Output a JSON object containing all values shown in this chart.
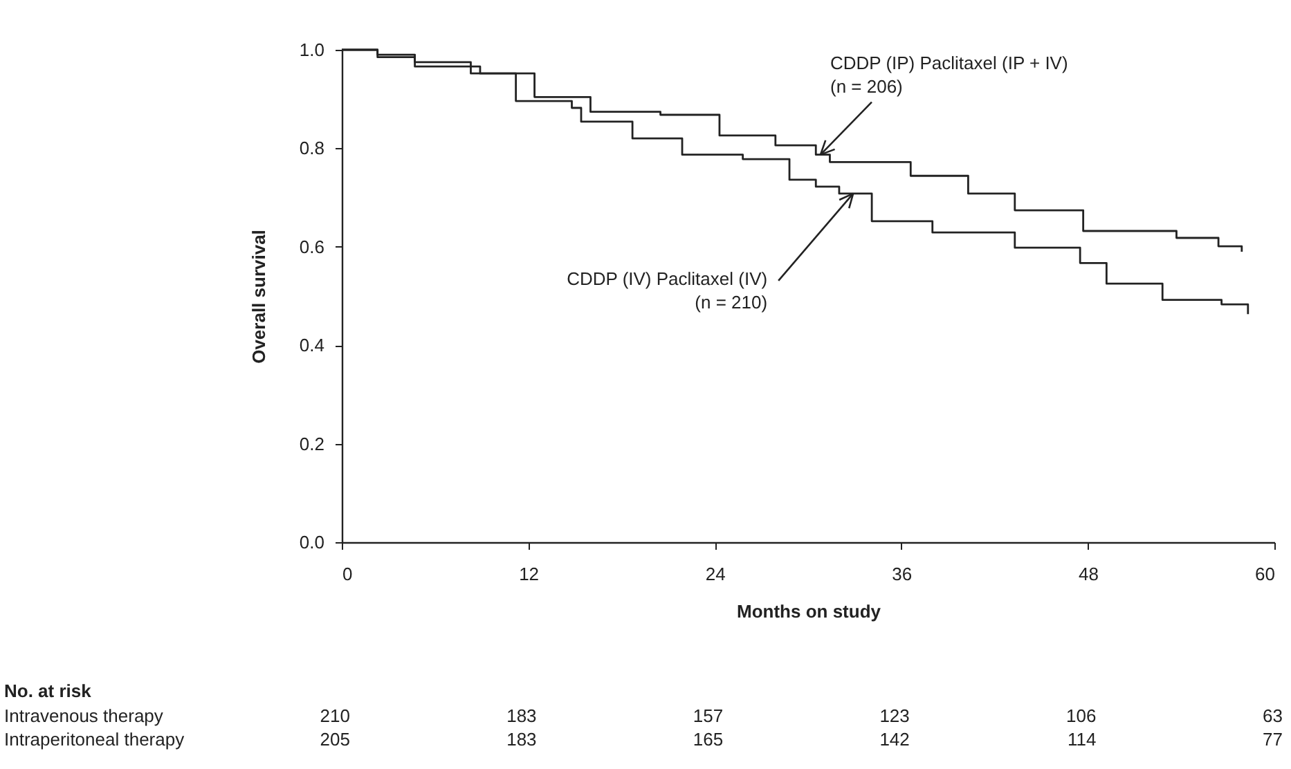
{
  "chart_data": {
    "type": "step",
    "xlabel": "Months on study",
    "ylabel": "Overall survival",
    "xlim": [
      0,
      60
    ],
    "xticks": [
      0,
      12,
      24,
      36,
      48,
      60
    ],
    "ylim": [
      0,
      1
    ],
    "yticks": [
      {
        "value": 0,
        "label": "0.0"
      },
      {
        "value": 0.2,
        "label": "0.2"
      },
      {
        "value": 0.4,
        "label": "0.4"
      },
      {
        "value": 0.6,
        "label": "0.6"
      },
      {
        "value": 0.8,
        "label": "0.8"
      },
      {
        "value": 1,
        "label": "1.0"
      }
    ],
    "grid": false,
    "marker": "none",
    "line_style": "solid",
    "series": [
      {
        "color": "#222222",
        "x": [
          0,
          2.3,
          4.7,
          8.3,
          12.4,
          16,
          20.5,
          24.3,
          27.9,
          30.5,
          31.4,
          36.6,
          40.3,
          43.3,
          47.7,
          53.7,
          56.4,
          57.9
        ],
        "values": [
          1.0,
          0.985,
          0.975,
          0.952,
          0.904,
          0.874,
          0.868,
          0.826,
          0.806,
          0.787,
          0.772,
          0.744,
          0.708,
          0.674,
          0.632,
          0.618,
          0.601,
          0.59
        ]
      },
      {
        "color": "#222222",
        "x": [
          0,
          2.3,
          4.7,
          8.9,
          11.2,
          14.8,
          15.4,
          18.7,
          21.9,
          25.8,
          28.8,
          30.5,
          32,
          34.1,
          38,
          43.3,
          47.5,
          49.2,
          52.8,
          56.6,
          58.3
        ],
        "values": [
          1.0,
          0.99,
          0.966,
          0.952,
          0.896,
          0.882,
          0.854,
          0.82,
          0.787,
          0.778,
          0.736,
          0.722,
          0.708,
          0.652,
          0.629,
          0.598,
          0.567,
          0.525,
          0.492,
          0.483,
          0.463
        ]
      }
    ],
    "annotations": [
      {
        "text": "CDDP (IP) Paclitaxel (IP + IV)\n(n = 206)",
        "x": 30.8,
        "y": 0.787
      },
      {
        "text": "CDDP (IV) Paclitaxel (IV)\n(n = 210)",
        "x": 32.9,
        "y": 0.708
      },
      "No. at risk",
      "Intravenous therapy",
      "210",
      "183",
      "157",
      "123",
      "106",
      "63",
      "Intraperitoneal therapy",
      "205",
      "183",
      "165",
      "142",
      "114",
      "77"
    ]
  }
}
